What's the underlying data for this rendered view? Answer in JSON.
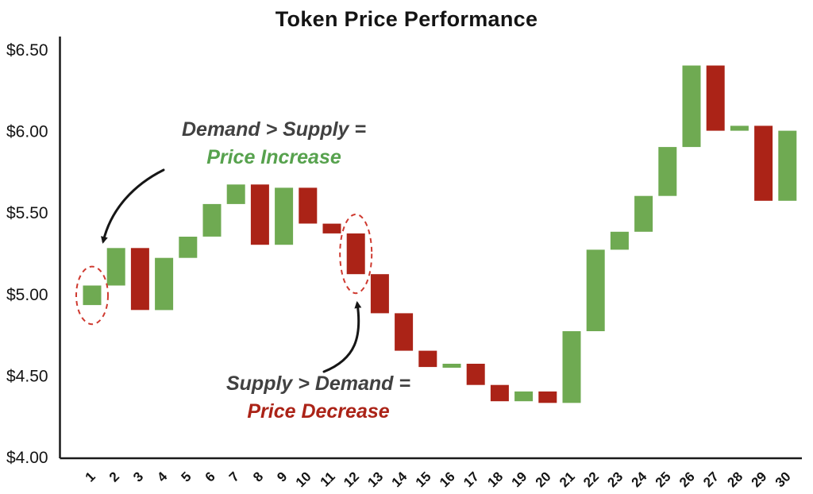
{
  "title": "Token Price Performance",
  "annotations": {
    "increase": {
      "line1": "Demand > Supply =",
      "line2": "Price Increase"
    },
    "decrease": {
      "line1": "Supply > Demand =",
      "line2": "Price Decrease"
    }
  },
  "colors": {
    "up": "#6faa52",
    "down": "#ab2317",
    "axis": "#1a1a1a",
    "highlight_ellipse": "#cf3a30",
    "annotation_gray": "#414141",
    "increase_text": "#57a24e",
    "decrease_text": "#ab2317"
  },
  "chart_data": {
    "type": "bar",
    "subtype": "waterfall-candle",
    "title": "Token Price Performance",
    "categories": [
      1,
      2,
      3,
      4,
      5,
      6,
      7,
      8,
      9,
      10,
      11,
      12,
      13,
      14,
      15,
      16,
      17,
      18,
      19,
      20,
      21,
      22,
      23,
      24,
      25,
      26,
      27,
      28,
      29,
      30
    ],
    "open": [
      4.93,
      5.05,
      5.28,
      4.9,
      5.22,
      5.35,
      5.55,
      5.67,
      5.3,
      5.65,
      5.43,
      5.37,
      5.12,
      4.88,
      4.65,
      4.55,
      4.57,
      4.44,
      4.34,
      4.4,
      4.33,
      4.77,
      5.27,
      5.38,
      5.6,
      5.9,
      6.4,
      6.0,
      6.03,
      5.57
    ],
    "close": [
      5.05,
      5.28,
      4.9,
      5.22,
      5.35,
      5.55,
      5.67,
      5.3,
      5.65,
      5.43,
      5.37,
      5.12,
      4.88,
      4.65,
      4.55,
      4.57,
      4.44,
      4.34,
      4.4,
      4.33,
      4.77,
      5.27,
      5.38,
      5.6,
      5.9,
      6.4,
      6.0,
      6.03,
      5.57,
      6.0
    ],
    "ylim": [
      4.0,
      6.5
    ],
    "y_ticks": [
      {
        "label": "$4.00",
        "value": 4.0
      },
      {
        "label": "$4.50",
        "value": 4.5
      },
      {
        "label": "$5.00",
        "value": 5.0
      },
      {
        "label": "$5.50",
        "value": 5.5
      },
      {
        "label": "$6.00",
        "value": 6.0
      },
      {
        "label": "$6.50",
        "value": 6.5
      }
    ],
    "up_color": "#6faa52",
    "down_color": "#ab2317",
    "highlighted_bars": [
      1,
      12
    ],
    "grid": false,
    "legend": "none"
  }
}
